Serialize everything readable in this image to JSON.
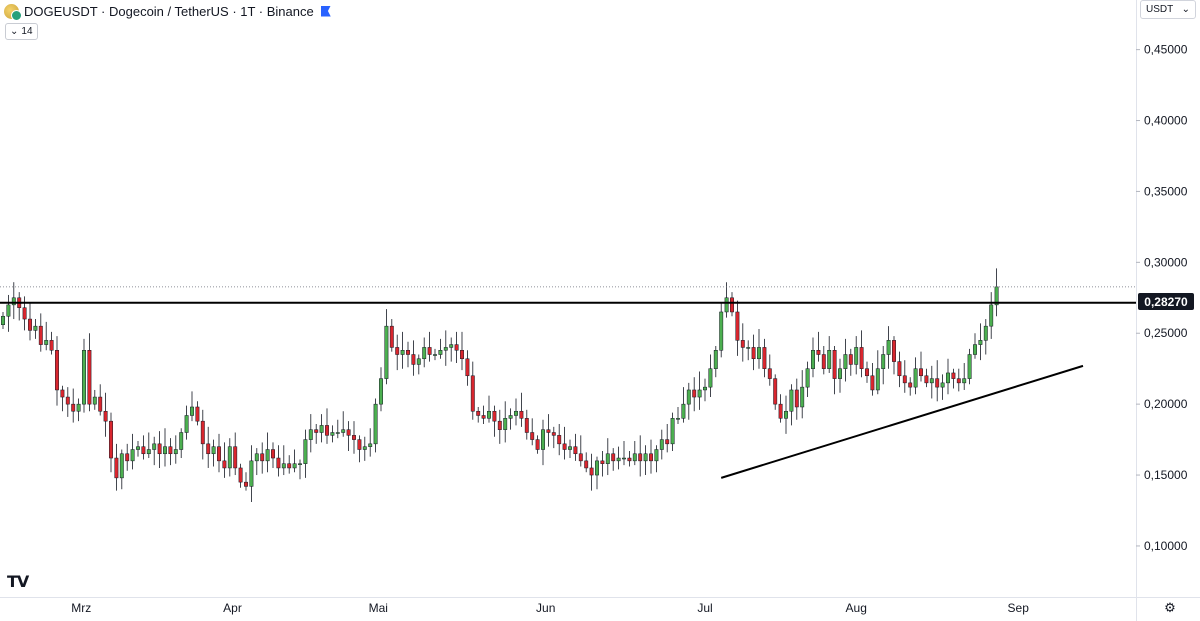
{
  "header": {
    "title": "DOGEUSDT · Dogecoin / TetherUS · 1T · Binance",
    "indicator_value": "14",
    "currency": "USDT",
    "last_price_label": "0,28270",
    "tv_logo": "TV"
  },
  "icons": {
    "symbol": "dogecoin-icon",
    "flag": "flag-icon",
    "indicator_toggle": "chevron-down-icon",
    "currency_toggle": "chevron-down-icon",
    "settings": "gear-icon"
  },
  "colors": {
    "up": "#4caf50",
    "down": "#d9262e",
    "wick": "#131722",
    "trendline": "#000000"
  },
  "chart_data": {
    "type": "candlestick",
    "x_tick_labels": [
      "Mrz",
      "Apr",
      "Mai",
      "Jun",
      "Jul",
      "Aug",
      "Sep"
    ],
    "y_tick_labels": [
      "0,45000",
      "0,40000",
      "0,35000",
      "0,30000",
      "0,25000",
      "0,20000",
      "0,15000",
      "0,10000"
    ],
    "y_ticks": [
      0.45,
      0.4,
      0.35,
      0.3,
      0.25,
      0.2,
      0.15,
      0.1
    ],
    "ylim": [
      0.064,
      0.485
    ],
    "last_price": 0.2827,
    "closes": [
      0.262,
      0.27,
      0.275,
      0.268,
      0.26,
      0.252,
      0.255,
      0.242,
      0.245,
      0.238,
      0.21,
      0.205,
      0.2,
      0.195,
      0.2,
      0.238,
      0.2,
      0.205,
      0.195,
      0.188,
      0.162,
      0.148,
      0.165,
      0.16,
      0.168,
      0.17,
      0.165,
      0.168,
      0.172,
      0.165,
      0.17,
      0.165,
      0.168,
      0.18,
      0.192,
      0.198,
      0.188,
      0.172,
      0.165,
      0.17,
      0.16,
      0.155,
      0.17,
      0.155,
      0.145,
      0.142,
      0.16,
      0.165,
      0.16,
      0.168,
      0.162,
      0.155,
      0.158,
      0.155,
      0.158,
      0.158,
      0.175,
      0.182,
      0.18,
      0.185,
      0.178,
      0.18,
      0.18,
      0.182,
      0.178,
      0.175,
      0.168,
      0.17,
      0.172,
      0.2,
      0.218,
      0.255,
      0.24,
      0.235,
      0.238,
      0.235,
      0.228,
      0.232,
      0.24,
      0.235,
      0.235,
      0.238,
      0.24,
      0.242,
      0.238,
      0.232,
      0.22,
      0.195,
      0.192,
      0.19,
      0.195,
      0.188,
      0.182,
      0.19,
      0.192,
      0.195,
      0.19,
      0.18,
      0.175,
      0.168,
      0.182,
      0.18,
      0.178,
      0.172,
      0.168,
      0.17,
      0.165,
      0.16,
      0.155,
      0.15,
      0.16,
      0.158,
      0.165,
      0.16,
      0.162,
      0.162,
      0.16,
      0.165,
      0.16,
      0.165,
      0.16,
      0.168,
      0.175,
      0.172,
      0.19,
      0.19,
      0.2,
      0.21,
      0.205,
      0.21,
      0.212,
      0.225,
      0.238,
      0.265,
      0.275,
      0.265,
      0.245,
      0.24,
      0.24,
      0.232,
      0.24,
      0.225,
      0.218,
      0.2,
      0.19,
      0.195,
      0.21,
      0.198,
      0.212,
      0.225,
      0.238,
      0.235,
      0.225,
      0.238,
      0.218,
      0.225,
      0.235,
      0.228,
      0.24,
      0.225,
      0.22,
      0.21,
      0.225,
      0.235,
      0.245,
      0.23,
      0.22,
      0.215,
      0.212,
      0.225,
      0.22,
      0.215,
      0.218,
      0.212,
      0.215,
      0.222,
      0.218,
      0.215,
      0.218,
      0.235,
      0.242,
      0.245,
      0.255,
      0.27,
      0.2827
    ]
  },
  "annotations": {
    "resistance_price": 0.2715,
    "reference_dotted_price": 0.2827,
    "support_line": {
      "start_index": 133,
      "start_price": 0.148,
      "end_index": 200,
      "end_price": 0.227
    }
  }
}
